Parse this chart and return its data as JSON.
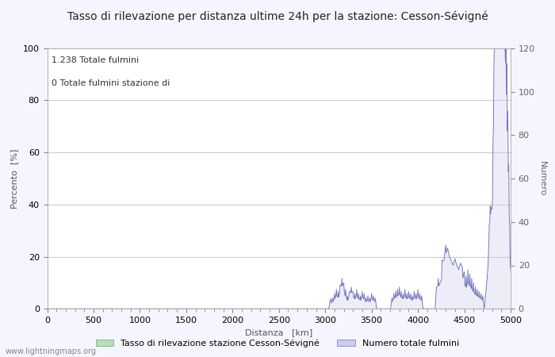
{
  "title": "Tasso di rilevazione per distanza ultime 24h per la stazione: Cesson-Sévigné",
  "xlabel": "Distanza   [km]",
  "ylabel_left": "Percento  [%]",
  "ylabel_right": "Numero",
  "annotation_line1": "1.238 Totale fulmini",
  "annotation_line2": "0 Totale fulmini stazione di",
  "legend_green": "Tasso di rilevazione stazione Cesson-Sévigné",
  "legend_blue": "Numero totale fulmini",
  "watermark": "www.lightningmaps.org",
  "xlim": [
    0,
    5000
  ],
  "ylim_left": [
    0,
    100
  ],
  "ylim_right": [
    0,
    120
  ],
  "xticks": [
    0,
    500,
    1000,
    1500,
    2000,
    2500,
    3000,
    3500,
    4000,
    4500,
    5000
  ],
  "yticks_left": [
    0,
    20,
    40,
    60,
    80,
    100
  ],
  "yticks_right": [
    0,
    20,
    40,
    60,
    80,
    100,
    120
  ],
  "bg_color": "#f5f5ff",
  "plot_bg_color": "#ffffff",
  "grid_color": "#cccccc",
  "blue_line_color": "#7777bb",
  "blue_fill_color": "#ccccee",
  "green_fill_color": "#bbddbb",
  "title_fontsize": 10,
  "axis_fontsize": 8,
  "tick_fontsize": 8,
  "right_tick_color": "#666666"
}
